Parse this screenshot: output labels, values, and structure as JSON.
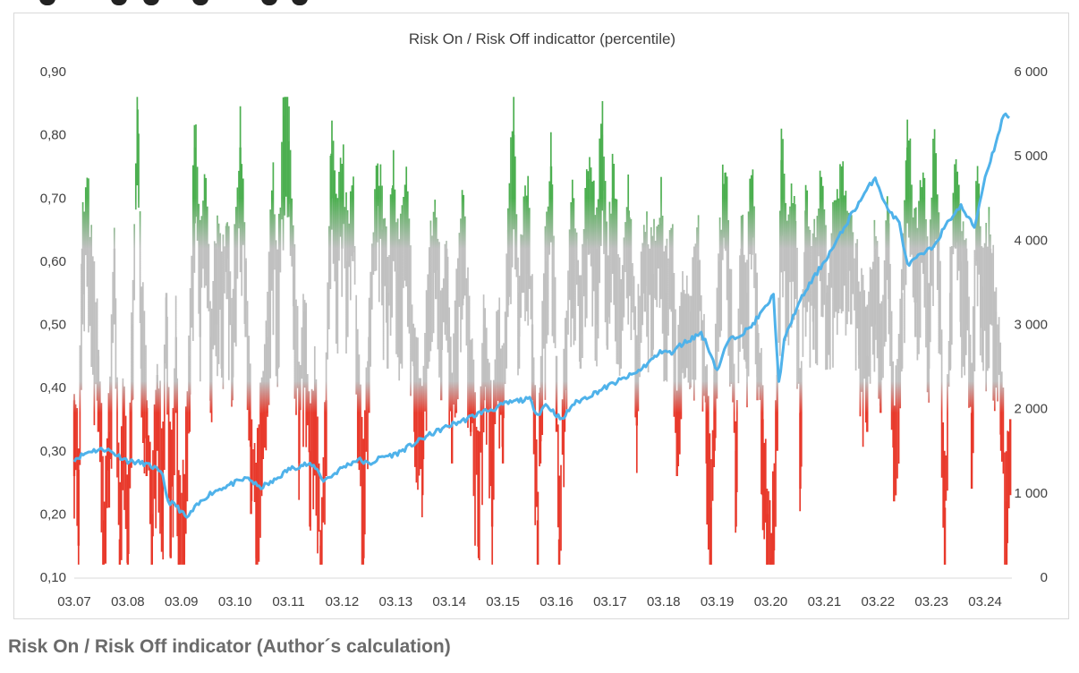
{
  "caption": "Risk On / Risk Off indicator (Author´s calculation)",
  "colors": {
    "risk_on": "#4caf50",
    "neutral": "#c0c0c0",
    "risk_off": "#e8392b",
    "index_line": "#4fb2ea",
    "axis_text": "#404040"
  },
  "chart_data": {
    "type": "line",
    "title": "Risk On / Risk Off indicattor (percentile)",
    "x_tick_labels": [
      "03.07",
      "03.08",
      "03.09",
      "03.10",
      "03.11",
      "03.12",
      "03.13",
      "03.14",
      "03.15",
      "03.16",
      "03.17",
      "03.18",
      "03.19",
      "03.20",
      "03.21",
      "03.22",
      "03.23",
      "03.24"
    ],
    "xlim": [
      2007.0,
      2024.5
    ],
    "y_left": {
      "lim": [
        0.1,
        0.9
      ],
      "tick_labels": [
        "0,10",
        "0,20",
        "0,30",
        "0,40",
        "0,50",
        "0,60",
        "0,70",
        "0,80",
        "0,90"
      ],
      "color_bands": [
        {
          "range": [
            0.1,
            0.39
          ],
          "color_name": "red"
        },
        {
          "range": [
            0.39,
            0.62
          ],
          "color_name": "gray"
        },
        {
          "range": [
            0.62,
            0.9
          ],
          "color_name": "green"
        }
      ]
    },
    "y_right": {
      "lim": [
        0,
        6000
      ],
      "tick_labels": [
        "0",
        "1 000",
        "2 000",
        "3 000",
        "4 000",
        "5 000",
        "6 000"
      ]
    },
    "grid": false,
    "legend": "none",
    "series": [
      {
        "axis": "left",
        "style": "dense vertical bars colored by level",
        "points": [
          [
            2007.0,
            0.38
          ],
          [
            2007.08,
            0.27
          ],
          [
            2007.15,
            0.62
          ],
          [
            2007.25,
            0.68
          ],
          [
            2007.33,
            0.57
          ],
          [
            2007.45,
            0.45
          ],
          [
            2007.55,
            0.19
          ],
          [
            2007.65,
            0.33
          ],
          [
            2007.75,
            0.62
          ],
          [
            2007.85,
            0.16
          ],
          [
            2007.92,
            0.4
          ],
          [
            2008.0,
            0.17
          ],
          [
            2008.08,
            0.5
          ],
          [
            2008.18,
            0.84
          ],
          [
            2008.25,
            0.55
          ],
          [
            2008.35,
            0.38
          ],
          [
            2008.45,
            0.2
          ],
          [
            2008.55,
            0.42
          ],
          [
            2008.65,
            0.3
          ],
          [
            2008.72,
            0.55
          ],
          [
            2008.8,
            0.25
          ],
          [
            2008.9,
            0.48
          ],
          [
            2008.95,
            0.19
          ],
          [
            2009.05,
            0.22
          ],
          [
            2009.15,
            0.45
          ],
          [
            2009.25,
            0.78
          ],
          [
            2009.35,
            0.6
          ],
          [
            2009.45,
            0.7
          ],
          [
            2009.55,
            0.48
          ],
          [
            2009.65,
            0.62
          ],
          [
            2009.75,
            0.55
          ],
          [
            2009.85,
            0.66
          ],
          [
            2009.95,
            0.5
          ],
          [
            2010.1,
            0.78
          ],
          [
            2010.2,
            0.6
          ],
          [
            2010.3,
            0.32
          ],
          [
            2010.4,
            0.25
          ],
          [
            2010.5,
            0.36
          ],
          [
            2010.6,
            0.48
          ],
          [
            2010.7,
            0.7
          ],
          [
            2010.8,
            0.55
          ],
          [
            2010.92,
            0.83
          ],
          [
            2011.0,
            0.79
          ],
          [
            2011.1,
            0.58
          ],
          [
            2011.2,
            0.4
          ],
          [
            2011.3,
            0.52
          ],
          [
            2011.4,
            0.3
          ],
          [
            2011.5,
            0.4
          ],
          [
            2011.6,
            0.15
          ],
          [
            2011.7,
            0.38
          ],
          [
            2011.8,
            0.77
          ],
          [
            2011.9,
            0.62
          ],
          [
            2012.0,
            0.74
          ],
          [
            2012.1,
            0.6
          ],
          [
            2012.2,
            0.72
          ],
          [
            2012.3,
            0.42
          ],
          [
            2012.4,
            0.25
          ],
          [
            2012.5,
            0.48
          ],
          [
            2012.65,
            0.75
          ],
          [
            2012.75,
            0.65
          ],
          [
            2012.85,
            0.55
          ],
          [
            2012.95,
            0.72
          ],
          [
            2013.05,
            0.58
          ],
          [
            2013.2,
            0.68
          ],
          [
            2013.35,
            0.45
          ],
          [
            2013.5,
            0.35
          ],
          [
            2013.6,
            0.55
          ],
          [
            2013.75,
            0.66
          ],
          [
            2013.85,
            0.5
          ],
          [
            2013.95,
            0.62
          ],
          [
            2014.05,
            0.4
          ],
          [
            2014.15,
            0.55
          ],
          [
            2014.25,
            0.65
          ],
          [
            2014.4,
            0.45
          ],
          [
            2014.55,
            0.25
          ],
          [
            2014.65,
            0.5
          ],
          [
            2014.8,
            0.3
          ],
          [
            2014.9,
            0.52
          ],
          [
            2015.0,
            0.4
          ],
          [
            2015.1,
            0.65
          ],
          [
            2015.2,
            0.8
          ],
          [
            2015.3,
            0.55
          ],
          [
            2015.45,
            0.7
          ],
          [
            2015.55,
            0.5
          ],
          [
            2015.65,
            0.19
          ],
          [
            2015.7,
            0.4
          ],
          [
            2015.8,
            0.6
          ],
          [
            2015.9,
            0.75
          ],
          [
            2016.0,
            0.45
          ],
          [
            2016.05,
            0.16
          ],
          [
            2016.15,
            0.45
          ],
          [
            2016.3,
            0.66
          ],
          [
            2016.45,
            0.55
          ],
          [
            2016.6,
            0.73
          ],
          [
            2016.75,
            0.62
          ],
          [
            2016.85,
            0.8
          ],
          [
            2016.95,
            0.58
          ],
          [
            2017.05,
            0.7
          ],
          [
            2017.2,
            0.55
          ],
          [
            2017.35,
            0.68
          ],
          [
            2017.5,
            0.46
          ],
          [
            2017.65,
            0.64
          ],
          [
            2017.8,
            0.58
          ],
          [
            2017.95,
            0.66
          ],
          [
            2018.05,
            0.55
          ],
          [
            2018.15,
            0.64
          ],
          [
            2018.25,
            0.38
          ],
          [
            2018.35,
            0.55
          ],
          [
            2018.5,
            0.52
          ],
          [
            2018.65,
            0.6
          ],
          [
            2018.8,
            0.4
          ],
          [
            2018.88,
            0.21
          ],
          [
            2018.95,
            0.42
          ],
          [
            2019.05,
            0.6
          ],
          [
            2019.15,
            0.74
          ],
          [
            2019.25,
            0.55
          ],
          [
            2019.35,
            0.3
          ],
          [
            2019.45,
            0.62
          ],
          [
            2019.55,
            0.55
          ],
          [
            2019.65,
            0.73
          ],
          [
            2019.75,
            0.5
          ],
          [
            2019.85,
            0.35
          ],
          [
            2019.93,
            0.2
          ],
          [
            2020.0,
            0.13
          ],
          [
            2020.05,
            0.22
          ],
          [
            2020.12,
            0.42
          ],
          [
            2020.2,
            0.76
          ],
          [
            2020.3,
            0.6
          ],
          [
            2020.45,
            0.69
          ],
          [
            2020.55,
            0.36
          ],
          [
            2020.65,
            0.68
          ],
          [
            2020.8,
            0.58
          ],
          [
            2020.95,
            0.7
          ],
          [
            2021.05,
            0.55
          ],
          [
            2021.2,
            0.64
          ],
          [
            2021.35,
            0.7
          ],
          [
            2021.5,
            0.62
          ],
          [
            2021.65,
            0.55
          ],
          [
            2021.8,
            0.45
          ],
          [
            2021.95,
            0.62
          ],
          [
            2022.05,
            0.48
          ],
          [
            2022.2,
            0.66
          ],
          [
            2022.3,
            0.34
          ],
          [
            2022.45,
            0.55
          ],
          [
            2022.55,
            0.78
          ],
          [
            2022.7,
            0.6
          ],
          [
            2022.85,
            0.7
          ],
          [
            2022.95,
            0.55
          ],
          [
            2023.05,
            0.77
          ],
          [
            2023.15,
            0.58
          ],
          [
            2023.25,
            0.21
          ],
          [
            2023.35,
            0.55
          ],
          [
            2023.45,
            0.74
          ],
          [
            2023.55,
            0.6
          ],
          [
            2023.65,
            0.62
          ],
          [
            2023.75,
            0.36
          ],
          [
            2023.85,
            0.72
          ],
          [
            2023.95,
            0.56
          ],
          [
            2024.1,
            0.62
          ],
          [
            2024.2,
            0.52
          ],
          [
            2024.3,
            0.42
          ],
          [
            2024.4,
            0.22
          ],
          [
            2024.47,
            0.35
          ]
        ]
      },
      {
        "axis": "right",
        "style": "line",
        "points": [
          [
            2007.0,
            1400
          ],
          [
            2007.3,
            1500
          ],
          [
            2007.6,
            1520
          ],
          [
            2007.8,
            1450
          ],
          [
            2008.0,
            1380
          ],
          [
            2008.3,
            1350
          ],
          [
            2008.5,
            1300
          ],
          [
            2008.65,
            1200
          ],
          [
            2008.75,
            900
          ],
          [
            2008.9,
            850
          ],
          [
            2009.1,
            700
          ],
          [
            2009.25,
            820
          ],
          [
            2009.5,
            980
          ],
          [
            2009.75,
            1060
          ],
          [
            2010.0,
            1120
          ],
          [
            2010.25,
            1180
          ],
          [
            2010.45,
            1060
          ],
          [
            2010.7,
            1130
          ],
          [
            2011.0,
            1280
          ],
          [
            2011.3,
            1340
          ],
          [
            2011.5,
            1310
          ],
          [
            2011.65,
            1150
          ],
          [
            2011.8,
            1200
          ],
          [
            2012.0,
            1300
          ],
          [
            2012.3,
            1400
          ],
          [
            2012.5,
            1340
          ],
          [
            2012.75,
            1430
          ],
          [
            2013.0,
            1460
          ],
          [
            2013.3,
            1570
          ],
          [
            2013.6,
            1680
          ],
          [
            2014.0,
            1800
          ],
          [
            2014.3,
            1870
          ],
          [
            2014.6,
            1960
          ],
          [
            2014.85,
            2000
          ],
          [
            2015.0,
            2050
          ],
          [
            2015.3,
            2100
          ],
          [
            2015.5,
            2110
          ],
          [
            2015.65,
            1930
          ],
          [
            2015.8,
            2050
          ],
          [
            2016.0,
            1930
          ],
          [
            2016.1,
            1860
          ],
          [
            2016.3,
            2050
          ],
          [
            2016.6,
            2150
          ],
          [
            2017.0,
            2280
          ],
          [
            2017.5,
            2430
          ],
          [
            2018.0,
            2700
          ],
          [
            2018.15,
            2650
          ],
          [
            2018.3,
            2750
          ],
          [
            2018.7,
            2900
          ],
          [
            2018.85,
            2700
          ],
          [
            2019.0,
            2450
          ],
          [
            2019.2,
            2800
          ],
          [
            2019.6,
            2950
          ],
          [
            2019.9,
            3200
          ],
          [
            2020.05,
            3350
          ],
          [
            2020.15,
            2300
          ],
          [
            2020.25,
            2800
          ],
          [
            2020.45,
            3150
          ],
          [
            2020.65,
            3400
          ],
          [
            2020.9,
            3650
          ],
          [
            2021.2,
            3950
          ],
          [
            2021.5,
            4300
          ],
          [
            2021.75,
            4550
          ],
          [
            2021.95,
            4750
          ],
          [
            2022.15,
            4400
          ],
          [
            2022.4,
            4200
          ],
          [
            2022.55,
            3700
          ],
          [
            2022.75,
            3800
          ],
          [
            2023.0,
            3900
          ],
          [
            2023.2,
            4100
          ],
          [
            2023.4,
            4300
          ],
          [
            2023.55,
            4400
          ],
          [
            2023.8,
            4150
          ],
          [
            2024.0,
            4750
          ],
          [
            2024.2,
            5150
          ],
          [
            2024.35,
            5500
          ],
          [
            2024.45,
            5450
          ]
        ]
      }
    ]
  }
}
